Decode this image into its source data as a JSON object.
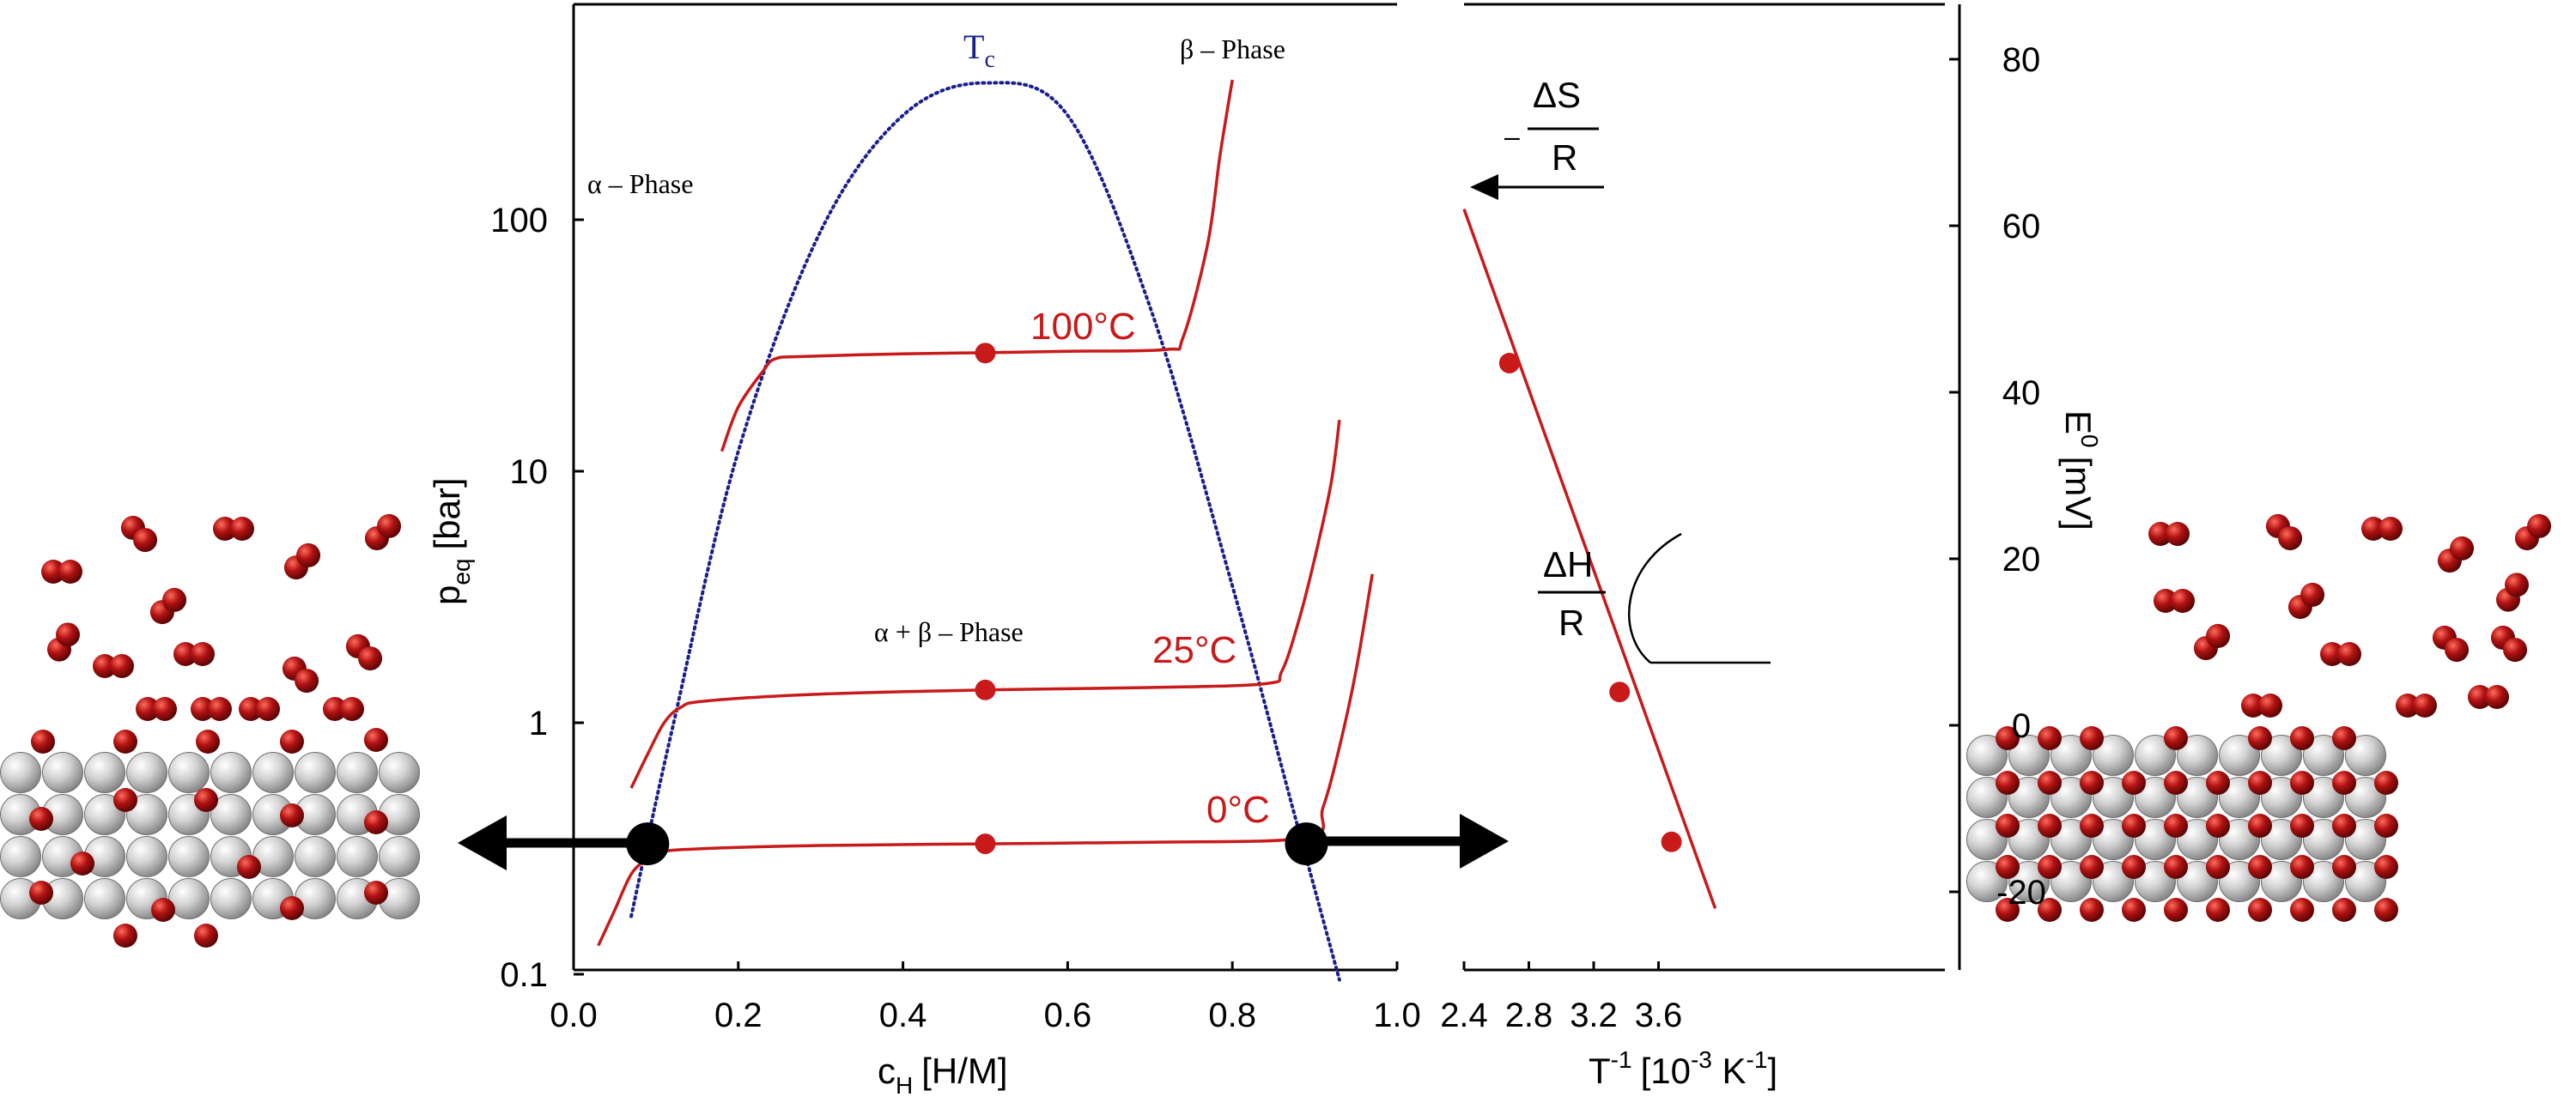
{
  "chart_data": [
    {
      "type": "line",
      "xlabel_main": "c",
      "xlabel_sub": "H",
      "xlabel_unit": "[H/M]",
      "ylabel_main": "p",
      "ylabel_sub": "eq",
      "ylabel_unit": "[bar]",
      "x_ticks": [
        "0.0",
        "0.2",
        "0.4",
        "0.6",
        "0.8",
        "1.0"
      ],
      "y_ticks": [
        "0.1",
        "1",
        "10",
        "100"
      ],
      "xlim": [
        0.0,
        1.0
      ],
      "ylim": [
        0.1,
        1000
      ],
      "y_scale": "log",
      "grid": false,
      "colors": {
        "isotherm": "#c81a1a",
        "critical_curve": "#1a1f8c",
        "axis": "#000000"
      },
      "annotations": {
        "tc_main": "T",
        "tc_sub": "c",
        "alpha_phase": "α – Phase",
        "beta_phase": "β – Phase",
        "mixed_phase": "α + β – Phase"
      },
      "series": [
        {
          "name": "100°C",
          "x": [
            0.18,
            0.2,
            0.23,
            0.245,
            0.28,
            0.4,
            0.5,
            0.6,
            0.72,
            0.74,
            0.77,
            0.785,
            0.8
          ],
          "y": [
            12,
            18,
            25,
            28,
            28.6,
            29.3,
            29.6,
            30,
            30.5,
            34,
            80,
            180,
            360
          ],
          "marker": {
            "x": 0.5,
            "y": 29.5
          }
        },
        {
          "name": "25°C",
          "x": [
            0.07,
            0.09,
            0.11,
            0.13,
            0.16,
            0.3,
            0.5,
            0.7,
            0.84,
            0.86,
            0.88,
            0.9,
            0.92,
            0.93
          ],
          "y": [
            0.55,
            0.75,
            1.0,
            1.15,
            1.22,
            1.3,
            1.35,
            1.38,
            1.43,
            1.6,
            2.5,
            4.5,
            9,
            16
          ],
          "marker": {
            "x": 0.5,
            "y": 1.35
          }
        },
        {
          "name": "0°C",
          "x": [
            0.03,
            0.05,
            0.07,
            0.09,
            0.1,
            0.15,
            0.3,
            0.5,
            0.7,
            0.89,
            0.91,
            0.93,
            0.95,
            0.97
          ],
          "y": [
            0.13,
            0.18,
            0.25,
            0.29,
            0.305,
            0.315,
            0.325,
            0.33,
            0.335,
            0.35,
            0.46,
            0.8,
            1.6,
            3.9
          ],
          "marker": {
            "x": 0.5,
            "y": 0.33
          }
        }
      ],
      "critical_curve": {
        "x": [
          0.07,
          0.12,
          0.2,
          0.3,
          0.4,
          0.5,
          0.6,
          0.7,
          0.8,
          0.88,
          0.93
        ],
        "y": [
          0.17,
          0.95,
          12,
          90,
          260,
          350,
          260,
          45,
          3.5,
          0.38,
          0.095
        ]
      },
      "black_points": [
        {
          "x": 0.09,
          "y": 0.33
        },
        {
          "x": 0.89,
          "y": 0.33
        }
      ]
    },
    {
      "type": "line",
      "xlabel_main": "T",
      "xlabel_sup": "-1",
      "xlabel_unit_main": "[10",
      "xlabel_unit_sup1": "-3",
      "xlabel_unit_mid": " K",
      "xlabel_unit_sup2": "-1",
      "xlabel_unit_end": "]",
      "ylabel_main": "E",
      "ylabel_sup": "0",
      "ylabel_unit": "[mV]",
      "x_ticks": [
        "2.4",
        "2.8",
        "3.2",
        "3.6"
      ],
      "y_ticks": [
        "80",
        "60",
        "40",
        "20",
        "0",
        "-20"
      ],
      "xlim": [
        2.4,
        4.0
      ],
      "ylim": [
        -30,
        86
      ],
      "grid": false,
      "annotations": {
        "entropy_prefix": "–",
        "entropy_numerator": "ΔS",
        "entropy_denominator": "R",
        "enthalpy_numerator": "ΔH",
        "enthalpy_denominator": "R"
      },
      "series": [
        {
          "name": "",
          "line": {
            "x": [
              2.4,
              3.95
            ],
            "y": [
              62,
              -22
            ]
          },
          "points": {
            "x": [
              2.68,
              3.36,
              3.68
            ],
            "y": [
              43.5,
              4,
              -14
            ]
          }
        }
      ]
    }
  ],
  "illustrations": {
    "left_lattice": "metal-hydride-alpha-phase",
    "right_lattice": "metal-hydride-beta-phase",
    "colors": {
      "metal_atom": "#b8b8b8",
      "hydrogen_atom": "#8c0a0a"
    }
  }
}
